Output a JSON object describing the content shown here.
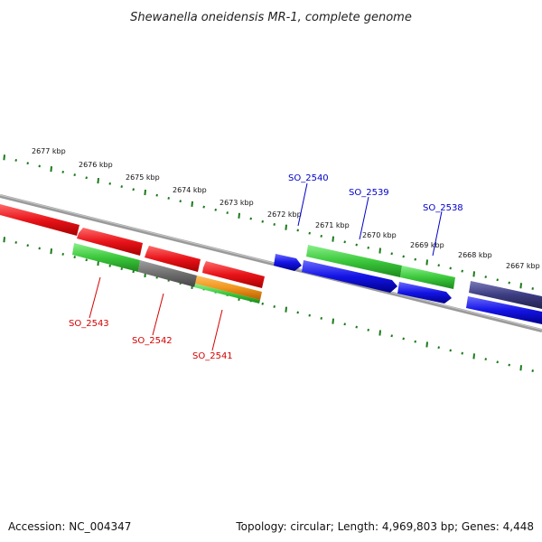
{
  "title": "Shewanella oneidensis MR-1, complete genome",
  "footer": {
    "accession": "Accession: NC_004347",
    "summary": "Topology: circular; Length: 4,969,803 bp; Genes: 4,448"
  },
  "colors": {
    "backbone": "#888888",
    "tick": "#1a7a1a",
    "red": "#e8141a",
    "green": "#3cc83c",
    "gray": "#6e6e6e",
    "orange": "#f0961e",
    "blue": "#1414e6",
    "slate": "#3c3c82",
    "label_red": "#d40000",
    "label_blue": "#0000c8"
  },
  "ticks": [
    "2677 kbp",
    "2676 kbp",
    "2675 kbp",
    "2674 kbp",
    "2673 kbp",
    "2672 kbp",
    "2671 kbp",
    "2670 kbp",
    "2669 kbp",
    "2668 kbp",
    "2667 kbp"
  ],
  "gene_labels": [
    {
      "text": "SO_2543",
      "color": "label_red"
    },
    {
      "text": "SO_2542",
      "color": "label_red"
    },
    {
      "text": "SO_2541",
      "color": "label_red"
    },
    {
      "text": "SO_2540",
      "color": "label_blue"
    },
    {
      "text": "SO_2539",
      "color": "label_blue"
    },
    {
      "text": "SO_2538",
      "color": "label_blue"
    }
  ]
}
